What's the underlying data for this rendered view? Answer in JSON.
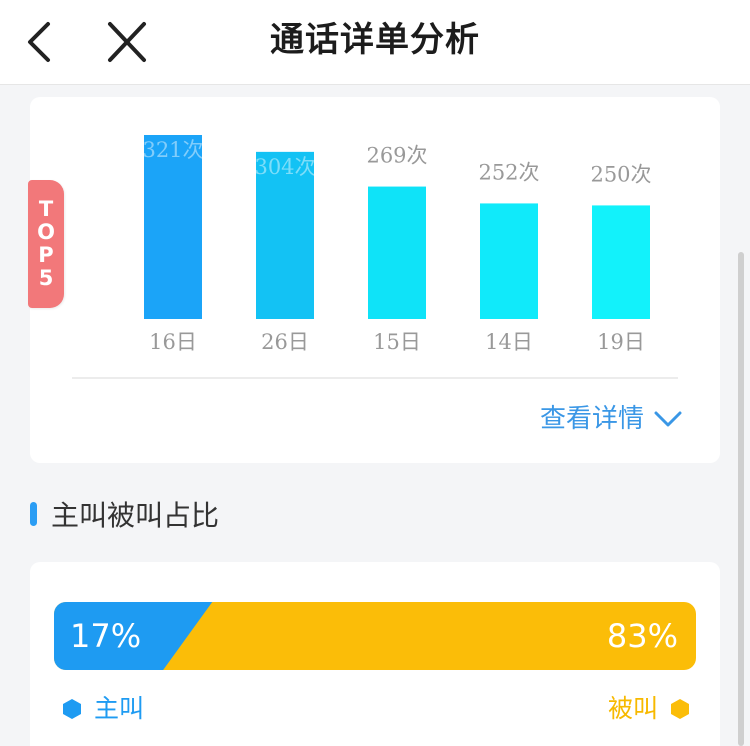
{
  "header": {
    "title": "通话详单分析",
    "back_icon": "chevron-left-icon",
    "close_icon": "close-icon"
  },
  "top_chart": {
    "badge": [
      "T",
      "O",
      "P",
      "5"
    ],
    "detail_label": "查看详情",
    "detail_icon": "chevron-down-icon",
    "chart_data": {
      "type": "bar",
      "categories": [
        "16日",
        "26日",
        "15日",
        "14日",
        "19日"
      ],
      "values": [
        321,
        304,
        269,
        252,
        250
      ],
      "data_labels": [
        "321次",
        "304次",
        "269次",
        "252次",
        "250次"
      ],
      "ylim": [
        0,
        330
      ],
      "colors": [
        "#1ba4f8",
        "#13c2f4",
        "#0fe3f8",
        "#10eafa",
        "#12f2fb"
      ],
      "label_color": "#999999",
      "grid": false
    }
  },
  "ratio": {
    "section_title": "主叫被叫占比",
    "caller": {
      "label": "主叫",
      "percent": 17,
      "percent_text": "17%",
      "color": "#1e9bf2",
      "icon": "hexagon-icon"
    },
    "callee": {
      "label": "被叫",
      "percent": 83,
      "percent_text": "83%",
      "color": "#fbbd08",
      "icon": "hexagon-icon"
    }
  }
}
